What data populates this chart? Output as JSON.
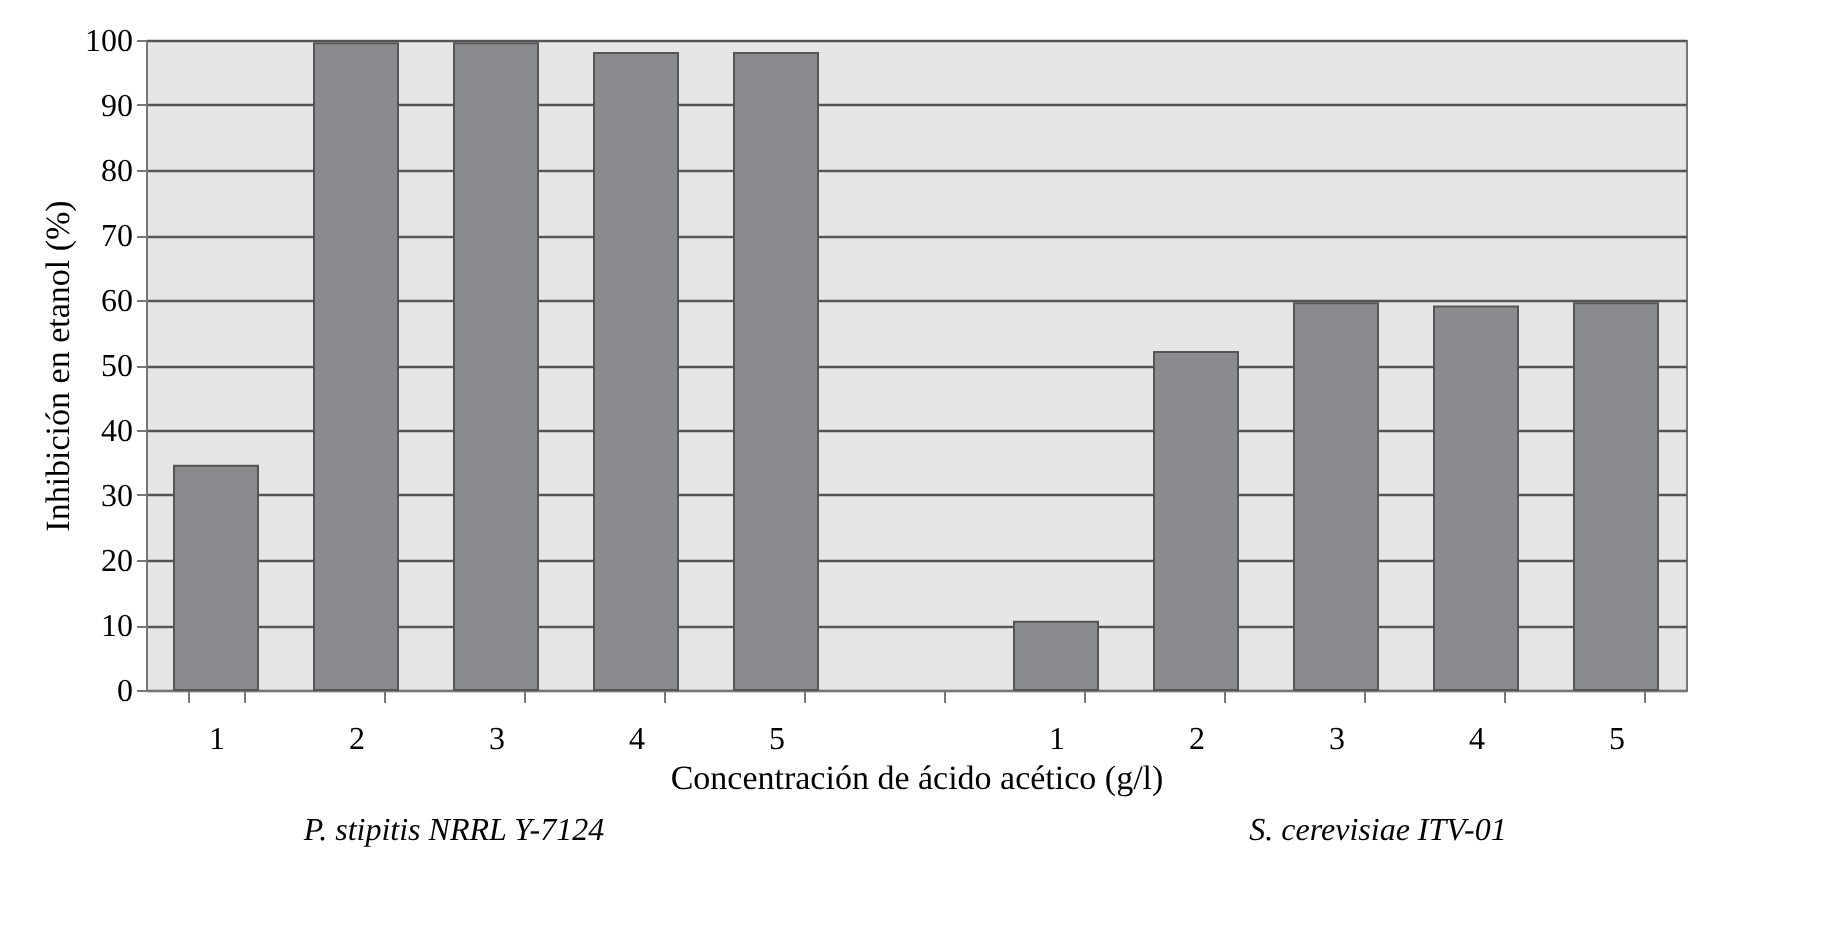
{
  "chart_data": {
    "type": "bar",
    "xlabel": "Concentración de ácido acético (g/l)",
    "ylabel": "Inhibición en etanol (%)",
    "categories": [
      "1",
      "2",
      "3",
      "4",
      "5",
      null,
      "1",
      "2",
      "3",
      "4",
      "5"
    ],
    "values": [
      34.5,
      99.5,
      99.5,
      98,
      98,
      null,
      10.5,
      52,
      59.5,
      59,
      59.5
    ],
    "color": "#8a8b8f",
    "ylim": [
      0,
      100
    ],
    "yticks": [
      0,
      10,
      20,
      30,
      40,
      50,
      60,
      70,
      80,
      90,
      100
    ],
    "grid": "y",
    "annotations": [
      "P. stipitis NRRL Y-7124",
      "S. cerevisiae ITV-01"
    ]
  }
}
